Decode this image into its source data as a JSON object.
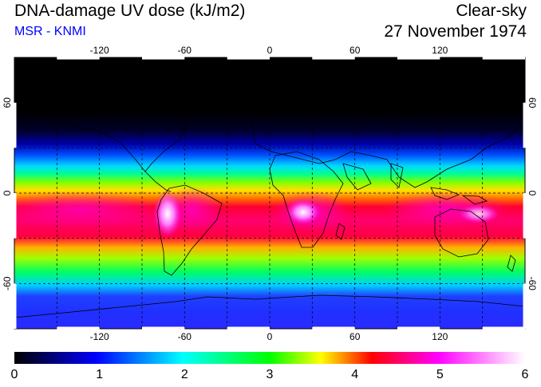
{
  "header": {
    "title": "DNA-damage UV dose (kJ/m2)",
    "subtitle": "MSR - KNMI",
    "condition": "Clear-sky",
    "date": "27 November 1974"
  },
  "map": {
    "lon_ticks": [
      "-120",
      "-60",
      "0",
      "60",
      "120"
    ],
    "lat_ticks": [
      "60",
      "0",
      "-60"
    ],
    "gridlines": "dashed, every 30 degrees"
  },
  "colorbar": {
    "ticks": [
      "0",
      "1",
      "2",
      "3",
      "4",
      "5",
      "6"
    ],
    "colors": [
      "#000000",
      "#0000ff",
      "#00ffff",
      "#00ff00",
      "#ffff00",
      "#ff0000",
      "#ff00ff",
      "#ffffff"
    ]
  },
  "colors": {
    "subtitle": "#0000ff",
    "polar_night": "#000000",
    "high_dose": "#ff00ff",
    "peak_dose": "#ffffff"
  }
}
